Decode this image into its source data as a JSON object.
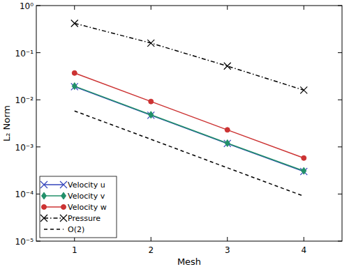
{
  "chart_data": {
    "type": "line",
    "x_label": "Mesh",
    "y_label": "L₂ Norm",
    "x": [
      1,
      2,
      3,
      4
    ],
    "xlim": [
      0.5,
      4.5
    ],
    "xticks": [
      1,
      2,
      3,
      4
    ],
    "ylim": [
      1e-05,
      1
    ],
    "yticks": [
      {
        "value": 1e-05,
        "label": "10⁻⁵"
      },
      {
        "value": 0.0001,
        "label": "10⁻⁴"
      },
      {
        "value": 0.001,
        "label": "10⁻³"
      },
      {
        "value": 0.01,
        "label": "10⁻²"
      },
      {
        "value": 0.1,
        "label": "10⁻¹"
      },
      {
        "value": 1,
        "label": "10⁰"
      }
    ],
    "log": "y",
    "grid": false,
    "legend": "lower left",
    "series": [
      {
        "name": "Velocity u",
        "color": "#3344bb",
        "marker": "x",
        "line_style": "solid",
        "values": [
          0.019,
          0.0047,
          0.00118,
          0.0003
        ]
      },
      {
        "name": "Velocity v",
        "color": "#22906a",
        "marker": "diamond",
        "line_style": "solid",
        "values": [
          0.0195,
          0.0048,
          0.0012,
          0.00031
        ]
      },
      {
        "name": "Velocity w",
        "color": "#cc3333",
        "marker": "circle",
        "line_style": "solid",
        "values": [
          0.037,
          0.0092,
          0.0023,
          0.00058
        ]
      },
      {
        "name": "Pressure",
        "color": "#000000",
        "marker": "x",
        "line_style": "dashdot",
        "values": [
          0.42,
          0.16,
          0.052,
          0.016
        ]
      },
      {
        "name": "O(2)",
        "color": "#000000",
        "marker": "none",
        "line_style": "dashed",
        "values": [
          0.0058,
          0.00145,
          0.00036,
          9e-05
        ]
      }
    ]
  }
}
